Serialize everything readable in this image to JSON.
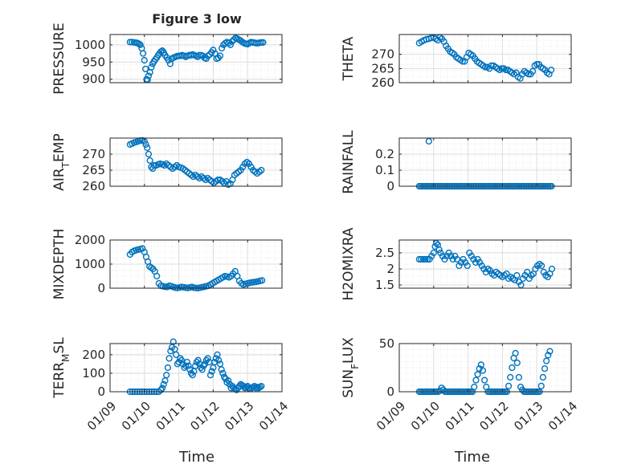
{
  "figure": {
    "title": "Figure 3 low",
    "marker_color": "#0072BD",
    "xticklabels": [
      "01/09",
      "01/10",
      "01/11",
      "01/12",
      "01/13",
      "01/14"
    ],
    "xlabel": "Time"
  },
  "chart_data": [
    {
      "type": "scatter",
      "id": "pressure",
      "ylabel_parts": [
        {
          "t": "PRESSURE",
          "sub": false
        }
      ],
      "ylim": [
        890,
        1030
      ],
      "yticks": [
        900,
        950,
        1000
      ],
      "xlim": [
        0,
        5
      ],
      "grid": true,
      "x": [
        0.58,
        0.64,
        0.7,
        0.76,
        0.8,
        0.84,
        0.88,
        0.92,
        0.96,
        1.0,
        1.03,
        1.06,
        1.09,
        1.12,
        1.16,
        1.2,
        1.24,
        1.28,
        1.32,
        1.36,
        1.4,
        1.44,
        1.48,
        1.52,
        1.56,
        1.6,
        1.65,
        1.7,
        1.75,
        1.8,
        1.85,
        1.9,
        1.95,
        2.0,
        2.05,
        2.1,
        2.15,
        2.2,
        2.25,
        2.3,
        2.35,
        2.4,
        2.45,
        2.5,
        2.55,
        2.6,
        2.65,
        2.7,
        2.75,
        2.8,
        2.85,
        2.9,
        2.95,
        3.0,
        3.05,
        3.1,
        3.15,
        3.2,
        3.25,
        3.3,
        3.35,
        3.4,
        3.45,
        3.5,
        3.55,
        3.6,
        3.65,
        3.7,
        3.75,
        3.8,
        3.85,
        3.9,
        3.95,
        4.0,
        4.05,
        4.1,
        4.15,
        4.2,
        4.25,
        4.3,
        4.35,
        4.4,
        4.45
      ],
      "y": [
        1008,
        1008,
        1007,
        1006,
        1005,
        1003,
        1000,
        990,
        975,
        955,
        930,
        900,
        898,
        910,
        920,
        935,
        945,
        952,
        958,
        963,
        970,
        975,
        980,
        983,
        978,
        970,
        963,
        955,
        945,
        960,
        963,
        965,
        967,
        968,
        968,
        970,
        968,
        965,
        968,
        970,
        970,
        972,
        970,
        968,
        965,
        970,
        970,
        968,
        962,
        960,
        968,
        972,
        978,
        985,
        975,
        960,
        962,
        968,
        990,
        1000,
        1005,
        1008,
        1005,
        1000,
        1010,
        1015,
        1020,
        1018,
        1015,
        1012,
        1008,
        1005,
        1003,
        1002,
        1005,
        1008,
        1007,
        1006,
        1005,
        1005,
        1006,
        1007,
        1007
      ]
    },
    {
      "type": "scatter",
      "id": "theta",
      "ylabel_parts": [
        {
          "t": "THETA",
          "sub": false
        }
      ],
      "ylim": [
        260,
        277
      ],
      "yticks": [
        260,
        265,
        270
      ],
      "xlim": [
        0,
        5
      ],
      "grid": true,
      "x": [
        0.58,
        0.65,
        0.72,
        0.79,
        0.86,
        0.93,
        1.0,
        1.06,
        1.12,
        1.18,
        1.24,
        1.3,
        1.36,
        1.42,
        1.48,
        1.54,
        1.6,
        1.66,
        1.72,
        1.78,
        1.84,
        1.9,
        1.96,
        2.02,
        2.08,
        2.14,
        2.2,
        2.26,
        2.32,
        2.38,
        2.44,
        2.5,
        2.56,
        2.62,
        2.68,
        2.74,
        2.8,
        2.86,
        2.92,
        2.98,
        3.04,
        3.1,
        3.16,
        3.22,
        3.28,
        3.34,
        3.4,
        3.46,
        3.52,
        3.58,
        3.64,
        3.7,
        3.76,
        3.82,
        3.88,
        3.94,
        4.0,
        4.06,
        4.12,
        4.18,
        4.24,
        4.3,
        4.36,
        4.42
      ],
      "y": [
        274.0,
        274.5,
        275.0,
        275.3,
        275.5,
        275.8,
        276.0,
        275.5,
        275.0,
        276.0,
        275.5,
        274.5,
        273.0,
        272.0,
        271.0,
        270.5,
        270.0,
        269.0,
        268.5,
        268.0,
        267.5,
        267.5,
        269.0,
        270.5,
        270.0,
        269.5,
        268.5,
        267.5,
        267.0,
        266.5,
        266.0,
        265.5,
        265.5,
        265.0,
        266.0,
        266.0,
        265.5,
        265.0,
        264.5,
        265.0,
        265.0,
        264.5,
        264.5,
        264.0,
        263.5,
        263.0,
        263.5,
        262.0,
        261.5,
        263.0,
        264.0,
        263.5,
        263.0,
        263.0,
        264.0,
        266.0,
        266.5,
        266.5,
        265.5,
        265.0,
        264.5,
        263.5,
        263.0,
        264.5
      ]
    },
    {
      "type": "scatter",
      "id": "air_temp",
      "ylabel_parts": [
        {
          "t": "AIR",
          "sub": false
        },
        {
          "t": "T",
          "sub": true
        },
        {
          "t": "EMP",
          "sub": false
        }
      ],
      "ylim": [
        260,
        275
      ],
      "yticks": [
        260,
        265,
        270
      ],
      "xlim": [
        0,
        5
      ],
      "grid": true,
      "x": [
        0.58,
        0.64,
        0.7,
        0.76,
        0.82,
        0.88,
        0.94,
        1.0,
        1.04,
        1.08,
        1.12,
        1.16,
        1.2,
        1.24,
        1.28,
        1.34,
        1.4,
        1.46,
        1.52,
        1.58,
        1.64,
        1.7,
        1.76,
        1.82,
        1.88,
        1.94,
        2.0,
        2.06,
        2.12,
        2.18,
        2.24,
        2.3,
        2.36,
        2.42,
        2.48,
        2.54,
        2.6,
        2.66,
        2.72,
        2.78,
        2.84,
        2.9,
        2.96,
        3.02,
        3.08,
        3.14,
        3.2,
        3.26,
        3.32,
        3.38,
        3.44,
        3.5,
        3.56,
        3.62,
        3.68,
        3.74,
        3.8,
        3.86,
        3.92,
        3.98,
        4.04,
        4.1,
        4.16,
        4.22,
        4.28,
        4.34,
        4.4
      ],
      "y": [
        273.0,
        273.3,
        273.6,
        273.8,
        274.0,
        274.2,
        274.3,
        274.0,
        273.0,
        272.0,
        270.0,
        268.0,
        266.0,
        265.5,
        266.5,
        266.5,
        266.8,
        267.0,
        266.8,
        266.5,
        267.0,
        266.5,
        266.0,
        265.5,
        266.0,
        266.5,
        266.0,
        265.8,
        265.5,
        265.0,
        264.5,
        264.0,
        263.5,
        263.0,
        263.5,
        263.0,
        262.5,
        263.0,
        262.5,
        262.0,
        262.5,
        262.0,
        261.5,
        261.0,
        261.5,
        262.0,
        262.0,
        261.5,
        261.0,
        261.5,
        260.5,
        260.8,
        262.0,
        263.5,
        264.0,
        264.5,
        265.0,
        266.0,
        267.0,
        267.5,
        267.0,
        266.0,
        265.0,
        264.5,
        264.0,
        264.5,
        265.0
      ]
    },
    {
      "type": "scatter",
      "id": "rainfall",
      "ylabel_parts": [
        {
          "t": "RAINFALL",
          "sub": false
        }
      ],
      "ylim": [
        0,
        0.3
      ],
      "yticks": [
        0,
        0.1,
        0.2
      ],
      "xlim": [
        0,
        5
      ],
      "grid": true,
      "x": [
        0.58,
        0.63,
        0.68,
        0.73,
        0.78,
        0.83,
        0.88,
        0.93,
        0.98,
        1.03,
        1.08,
        1.13,
        1.18,
        1.23,
        1.28,
        1.33,
        1.38,
        1.43,
        1.48,
        1.53,
        1.58,
        1.63,
        1.68,
        1.73,
        1.78,
        1.83,
        1.88,
        1.93,
        1.98,
        2.03,
        2.08,
        2.13,
        2.18,
        2.23,
        2.28,
        2.33,
        2.38,
        2.43,
        2.48,
        2.53,
        2.58,
        2.63,
        2.68,
        2.73,
        2.78,
        2.83,
        2.88,
        2.93,
        2.98,
        3.03,
        3.08,
        3.13,
        3.18,
        3.23,
        3.28,
        3.33,
        3.38,
        3.43,
        3.48,
        3.53,
        3.58,
        3.63,
        3.68,
        3.73,
        3.78,
        3.83,
        3.88,
        3.93,
        3.98,
        4.03,
        4.08,
        4.13,
        4.18,
        4.23,
        4.28,
        4.33,
        4.38,
        4.43,
        0.86
      ],
      "y": [
        0,
        0,
        0,
        0,
        0,
        0,
        0,
        0,
        0,
        0,
        0,
        0,
        0,
        0,
        0,
        0,
        0,
        0,
        0,
        0,
        0,
        0,
        0,
        0,
        0,
        0,
        0,
        0,
        0,
        0,
        0,
        0,
        0,
        0,
        0,
        0,
        0,
        0,
        0,
        0,
        0,
        0,
        0,
        0,
        0,
        0,
        0,
        0,
        0,
        0,
        0,
        0,
        0,
        0,
        0,
        0,
        0,
        0,
        0,
        0,
        0,
        0,
        0,
        0,
        0,
        0,
        0,
        0,
        0,
        0,
        0,
        0,
        0,
        0,
        0,
        0,
        0,
        0,
        0.28
      ]
    },
    {
      "type": "scatter",
      "id": "mixdepth",
      "ylabel_parts": [
        {
          "t": "MIXDEPTH",
          "sub": false
        }
      ],
      "ylim": [
        0,
        2000
      ],
      "yticks": [
        0,
        1000,
        2000
      ],
      "xlim": [
        0,
        5
      ],
      "grid": true,
      "x": [
        0.58,
        0.64,
        0.7,
        0.76,
        0.82,
        0.88,
        0.94,
        1.0,
        1.05,
        1.1,
        1.15,
        1.2,
        1.25,
        1.3,
        1.36,
        1.42,
        1.48,
        1.54,
        1.6,
        1.66,
        1.72,
        1.78,
        1.84,
        1.9,
        1.96,
        2.02,
        2.08,
        2.14,
        2.2,
        2.26,
        2.32,
        2.38,
        2.44,
        2.5,
        2.56,
        2.62,
        2.68,
        2.74,
        2.8,
        2.86,
        2.92,
        2.98,
        3.04,
        3.1,
        3.16,
        3.22,
        3.28,
        3.34,
        3.4,
        3.46,
        3.52,
        3.58,
        3.64,
        3.7,
        3.76,
        3.82,
        3.88,
        3.94,
        4.0,
        4.06,
        4.12,
        4.18,
        4.24,
        4.3,
        4.36,
        4.42
      ],
      "y": [
        1400,
        1500,
        1550,
        1580,
        1600,
        1620,
        1650,
        1500,
        1300,
        1100,
        900,
        850,
        800,
        700,
        500,
        200,
        100,
        80,
        60,
        50,
        100,
        80,
        50,
        20,
        10,
        30,
        50,
        40,
        20,
        10,
        30,
        50,
        20,
        10,
        5,
        20,
        40,
        60,
        80,
        100,
        150,
        200,
        250,
        300,
        350,
        400,
        450,
        500,
        480,
        450,
        500,
        600,
        700,
        500,
        300,
        200,
        150,
        180,
        200,
        220,
        240,
        250,
        260,
        280,
        300,
        320
      ]
    },
    {
      "type": "scatter",
      "id": "h2omixra",
      "ylabel_parts": [
        {
          "t": "H2OMIXRA",
          "sub": false
        }
      ],
      "ylim": [
        1.4,
        2.9
      ],
      "yticks": [
        1.5,
        2,
        2.5
      ],
      "xlim": [
        0,
        5
      ],
      "grid": true,
      "x": [
        0.58,
        0.64,
        0.7,
        0.76,
        0.82,
        0.88,
        0.94,
        1.0,
        1.04,
        1.08,
        1.12,
        1.16,
        1.2,
        1.26,
        1.32,
        1.38,
        1.44,
        1.5,
        1.56,
        1.62,
        1.68,
        1.74,
        1.8,
        1.86,
        1.92,
        1.98,
        2.04,
        2.1,
        2.16,
        2.22,
        2.28,
        2.34,
        2.4,
        2.46,
        2.52,
        2.58,
        2.64,
        2.7,
        2.76,
        2.82,
        2.88,
        2.94,
        3.0,
        3.06,
        3.12,
        3.18,
        3.24,
        3.3,
        3.36,
        3.42,
        3.48,
        3.54,
        3.6,
        3.66,
        3.72,
        3.78,
        3.84,
        3.9,
        3.96,
        4.02,
        4.08,
        4.14,
        4.2,
        4.26,
        4.32,
        4.38,
        4.44
      ],
      "y": [
        2.3,
        2.3,
        2.3,
        2.3,
        2.3,
        2.3,
        2.4,
        2.5,
        2.7,
        2.8,
        2.75,
        2.6,
        2.5,
        2.4,
        2.3,
        2.4,
        2.5,
        2.4,
        2.3,
        2.4,
        2.3,
        2.1,
        2.2,
        2.3,
        2.2,
        2.1,
        2.5,
        2.4,
        2.3,
        2.2,
        2.3,
        2.2,
        2.1,
        2.0,
        1.9,
        2.0,
        1.95,
        1.85,
        1.8,
        1.9,
        1.85,
        1.8,
        1.75,
        1.8,
        1.85,
        1.7,
        1.75,
        1.7,
        1.65,
        1.8,
        1.6,
        1.5,
        1.7,
        1.8,
        1.9,
        1.7,
        1.8,
        1.85,
        2.0,
        2.1,
        2.15,
        2.1,
        1.9,
        1.8,
        1.75,
        1.85,
        2.0
      ]
    },
    {
      "type": "scatter",
      "id": "terr_msl",
      "ylabel_parts": [
        {
          "t": "TERR",
          "sub": false
        },
        {
          "t": "M",
          "sub": true
        },
        {
          "t": "SL",
          "sub": false
        }
      ],
      "ylim": [
        0,
        260
      ],
      "yticks": [
        0,
        100,
        200
      ],
      "xlim": [
        0,
        5
      ],
      "grid": true,
      "x": [
        0.58,
        0.65,
        0.72,
        0.79,
        0.86,
        0.93,
        1.0,
        1.07,
        1.14,
        1.21,
        1.28,
        1.35,
        1.42,
        1.48,
        1.52,
        1.56,
        1.6,
        1.64,
        1.68,
        1.72,
        1.76,
        1.8,
        1.84,
        1.88,
        1.92,
        1.96,
        2.0,
        2.04,
        2.08,
        2.12,
        2.16,
        2.2,
        2.24,
        2.28,
        2.32,
        2.36,
        2.4,
        2.44,
        2.48,
        2.52,
        2.56,
        2.6,
        2.64,
        2.68,
        2.72,
        2.76,
        2.8,
        2.84,
        2.88,
        2.92,
        2.96,
        3.0,
        3.04,
        3.08,
        3.12,
        3.16,
        3.2,
        3.24,
        3.28,
        3.32,
        3.36,
        3.4,
        3.44,
        3.48,
        3.52,
        3.56,
        3.6,
        3.64,
        3.68,
        3.72,
        3.76,
        3.8,
        3.84,
        3.88,
        3.92,
        3.96,
        4.0,
        4.04,
        4.08,
        4.12,
        4.16,
        4.2,
        4.24,
        4.28,
        4.32,
        4.36,
        4.4
      ],
      "y": [
        0,
        0,
        0,
        0,
        0,
        0,
        0,
        0,
        0,
        0,
        0,
        0,
        0,
        10,
        20,
        40,
        60,
        90,
        130,
        180,
        220,
        240,
        270,
        230,
        200,
        150,
        160,
        180,
        170,
        150,
        130,
        140,
        160,
        140,
        120,
        100,
        90,
        110,
        140,
        160,
        170,
        150,
        130,
        120,
        140,
        150,
        170,
        180,
        160,
        90,
        110,
        130,
        160,
        180,
        200,
        170,
        150,
        120,
        100,
        80,
        70,
        50,
        60,
        40,
        20,
        30,
        20,
        15,
        10,
        20,
        30,
        40,
        35,
        30,
        20,
        25,
        30,
        20,
        15,
        20,
        25,
        30,
        20,
        25,
        20,
        25,
        30
      ]
    },
    {
      "type": "scatter",
      "id": "sun_flux",
      "ylabel_parts": [
        {
          "t": "SUN",
          "sub": false
        },
        {
          "t": "F",
          "sub": true
        },
        {
          "t": "LUX",
          "sub": false
        }
      ],
      "ylim": [
        0,
        50
      ],
      "yticks": [
        0,
        50
      ],
      "xlim": [
        0,
        5
      ],
      "grid": true,
      "x": [
        0.58,
        0.63,
        0.68,
        0.73,
        0.78,
        0.83,
        0.88,
        0.93,
        0.98,
        1.03,
        1.08,
        1.13,
        1.18,
        1.23,
        1.28,
        1.33,
        1.38,
        1.43,
        1.48,
        1.53,
        1.58,
        1.63,
        1.68,
        1.73,
        1.78,
        1.83,
        1.88,
        1.93,
        1.98,
        2.03,
        2.08,
        2.13,
        2.18,
        2.23,
        2.28,
        2.33,
        2.38,
        2.43,
        2.48,
        2.53,
        2.58,
        2.63,
        2.68,
        2.73,
        2.78,
        2.83,
        2.88,
        2.93,
        2.98,
        3.03,
        3.08,
        3.13,
        3.18,
        3.23,
        3.28,
        3.33,
        3.38,
        3.43,
        3.48,
        3.53,
        3.58,
        3.63,
        3.68,
        3.73,
        3.78,
        3.83,
        3.88,
        3.93,
        3.98,
        4.03,
        4.08,
        4.13,
        4.18,
        4.23,
        4.28,
        4.33,
        4.38
      ],
      "y": [
        0,
        0,
        0,
        0,
        0,
        0,
        0,
        0,
        0,
        0,
        0,
        0,
        1,
        4,
        2,
        0,
        0,
        0,
        0,
        0,
        0,
        0,
        0,
        0,
        0,
        0,
        0,
        0,
        0,
        0,
        0,
        0,
        5,
        12,
        18,
        24,
        28,
        22,
        12,
        5,
        0,
        0,
        0,
        0,
        0,
        0,
        0,
        0,
        0,
        0,
        0,
        0,
        6,
        15,
        25,
        35,
        40,
        30,
        15,
        5,
        2,
        0,
        0,
        0,
        0,
        0,
        0,
        0,
        0,
        0,
        0,
        6,
        15,
        24,
        32,
        38,
        42
      ]
    }
  ]
}
